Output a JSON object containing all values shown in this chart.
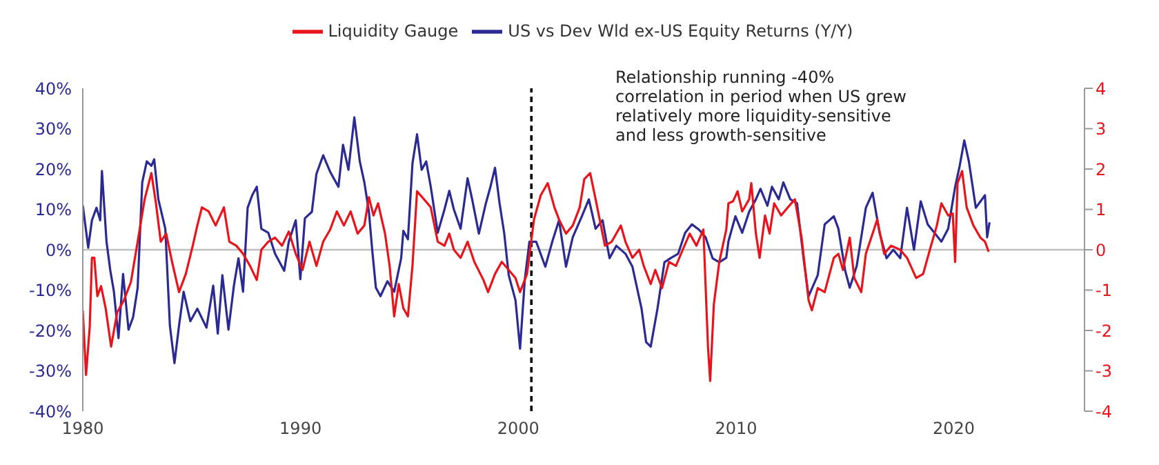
{
  "chart_data": {
    "type": "line",
    "legend": "top",
    "grid": false,
    "marker": "none",
    "line_style": "solid",
    "xlim": [
      1980,
      2026
    ],
    "xticks": [
      1980,
      1990,
      2000,
      2010,
      2020
    ],
    "ylim": [
      -40,
      40
    ],
    "yticks": [
      {
        "value": -40,
        "label": "-40%"
      },
      {
        "value": -30,
        "label": "-30%"
      },
      {
        "value": -20,
        "label": "-20%"
      },
      {
        "value": -10,
        "label": "-10%"
      },
      {
        "value": 0,
        "label": "0%"
      },
      {
        "value": 10,
        "label": "10%"
      },
      {
        "value": 20,
        "label": "20%"
      },
      {
        "value": 30,
        "label": "30%"
      },
      {
        "value": 40,
        "label": "40%"
      }
    ],
    "y2lim": [
      -4,
      4
    ],
    "y2ticks": [
      -4,
      -3,
      -2,
      -1,
      0,
      1,
      2,
      3,
      4
    ],
    "ref_lines": [
      {
        "axis": "y",
        "value": 0,
        "color": "#bfbfbf",
        "line_style": "solid"
      },
      {
        "axis": "x",
        "value": 2000.6,
        "color": "#000000",
        "line_style": "dashed"
      }
    ],
    "annotations": [
      "Relationship running -40%\ncorrelation in period when US grew\nrelatively more liquidity-sensitive\nand less growth-sensitive"
    ],
    "series": [
      {
        "name": "US vs Dev Wld ex-US Equity Returns (Y/Y)",
        "color": "#2b2a92",
        "x": [
          1980.0,
          1980.25,
          1980.42,
          1980.63,
          1980.8,
          1980.88,
          1981.09,
          1981.26,
          1981.43,
          1981.64,
          1981.85,
          1982.1,
          1982.31,
          1982.52,
          1982.73,
          1982.94,
          1983.15,
          1983.28,
          1983.47,
          1983.79,
          1984.0,
          1984.21,
          1984.42,
          1984.63,
          1984.94,
          1985.26,
          1985.68,
          1985.99,
          1986.2,
          1986.41,
          1986.69,
          1986.94,
          1987.15,
          1987.36,
          1987.57,
          1987.78,
          1987.99,
          1988.2,
          1988.52,
          1988.83,
          1989.25,
          1989.46,
          1989.78,
          1989.99,
          1990.2,
          1990.52,
          1990.73,
          1991.04,
          1991.36,
          1991.74,
          1991.95,
          1992.2,
          1992.47,
          1992.72,
          1992.93,
          1993.14,
          1993.29,
          1993.46,
          1993.67,
          1993.99,
          1994.3,
          1994.62,
          1994.72,
          1994.93,
          1995.14,
          1995.35,
          1995.56,
          1995.77,
          1995.98,
          1996.3,
          1996.61,
          1996.83,
          1997.04,
          1997.35,
          1997.67,
          1997.88,
          1998.19,
          1998.51,
          1998.72,
          1998.93,
          1999.14,
          1999.35,
          1999.56,
          1999.87,
          2000.08,
          2000.3,
          2000.51,
          2000.82,
          2001.24,
          2001.56,
          2001.87,
          2002.19,
          2002.5,
          2002.92,
          2003.24,
          2003.55,
          2003.87,
          2004.19,
          2004.5,
          2004.92,
          2005.24,
          2005.66,
          2005.87,
          2006.08,
          2006.39,
          2006.71,
          2007.02,
          2007.34,
          2007.66,
          2007.97,
          2008.29,
          2008.6,
          2008.92,
          2009.23,
          2009.55,
          2009.65,
          2009.97,
          2010.28,
          2010.6,
          2010.91,
          2011.12,
          2011.44,
          2011.65,
          2011.96,
          2012.17,
          2012.49,
          2012.8,
          2013.12,
          2013.33,
          2013.75,
          2014.07,
          2014.49,
          2014.7,
          2015.01,
          2015.22,
          2015.54,
          2015.96,
          2016.27,
          2016.59,
          2016.91,
          2017.22,
          2017.54,
          2017.85,
          2018.17,
          2018.48,
          2018.8,
          2019.11,
          2019.43,
          2019.74,
          2020.06,
          2020.27,
          2020.48,
          2020.69,
          2021.01,
          2021.43,
          2021.53,
          2021.64
        ],
        "values": [
          11,
          0.5,
          7.3,
          10.4,
          7.3,
          19.5,
          2,
          -5,
          -10.4,
          -21.9,
          -6,
          -19.8,
          -16.7,
          -9.4,
          16.7,
          21.9,
          20.8,
          22.4,
          12.5,
          5.2,
          -18.8,
          -28.1,
          -18.8,
          -10.4,
          -17.7,
          -14.6,
          -19.3,
          -8.9,
          -20.8,
          -6.3,
          -19.8,
          -8.9,
          -2.1,
          -10.4,
          10.4,
          13.5,
          15.6,
          5.2,
          4.2,
          -1,
          -5.2,
          2,
          7.3,
          -7.3,
          7.8,
          9.4,
          18.8,
          23.4,
          19.3,
          15.6,
          26,
          19.8,
          32.8,
          21.9,
          16.7,
          9.4,
          0,
          -9.4,
          -11.5,
          -7.8,
          -10.4,
          -2.1,
          4.7,
          2.6,
          21.4,
          28.6,
          19.8,
          21.9,
          15.6,
          4.2,
          10,
          14.6,
          10,
          5.2,
          17.7,
          12.5,
          4,
          11.5,
          15.6,
          20.3,
          11.5,
          4.2,
          -6.3,
          -12.5,
          -24.5,
          -7.3,
          2,
          2,
          -4.2,
          2,
          7.3,
          -4.2,
          3.1,
          8.3,
          12.5,
          5.2,
          7.3,
          -2.1,
          1,
          -1,
          -4.2,
          -14.6,
          -22.9,
          -24,
          -14.6,
          -3.1,
          -2,
          -1,
          4.2,
          6.3,
          5,
          3.1,
          -2.1,
          -3.1,
          -2,
          2.1,
          8.3,
          4.2,
          9.4,
          12.5,
          15.1,
          10.9,
          15.6,
          12.5,
          16.7,
          12.5,
          11.5,
          -3.1,
          -11.5,
          -6.3,
          6.3,
          8.3,
          5.2,
          -5.2,
          -9.4,
          -4,
          10.4,
          14.1,
          4.2,
          -2.1,
          0,
          -2.1,
          10.4,
          0,
          12,
          6.3,
          4.2,
          2,
          5.2,
          15.6,
          20.8,
          27.1,
          21.9,
          10.4,
          13.5,
          3.1,
          6.8
        ]
      },
      {
        "name": "Liquidity Gauge",
        "color": "#e8141c",
        "axis": "y2",
        "x": [
          1980.0,
          1980.15,
          1980.32,
          1980.42,
          1980.53,
          1980.67,
          1980.84,
          1981.05,
          1981.3,
          1981.58,
          1981.89,
          1982.21,
          1982.52,
          1982.84,
          1983.15,
          1983.36,
          1983.58,
          1983.83,
          1984.1,
          1984.42,
          1984.73,
          1985.05,
          1985.26,
          1985.47,
          1985.78,
          1986.1,
          1986.48,
          1986.73,
          1987.05,
          1987.36,
          1987.68,
          1987.99,
          1988.2,
          1988.52,
          1988.83,
          1989.15,
          1989.46,
          1989.78,
          1990.09,
          1990.41,
          1990.73,
          1991.04,
          1991.36,
          1991.67,
          1991.99,
          1992.3,
          1992.62,
          1992.93,
          1993.14,
          1993.35,
          1993.56,
          1993.88,
          1994.09,
          1994.3,
          1994.51,
          1994.72,
          1994.93,
          1995.14,
          1995.35,
          1995.67,
          1995.98,
          1996.3,
          1996.61,
          1996.83,
          1997.04,
          1997.35,
          1997.67,
          1997.98,
          1998.4,
          1998.61,
          1998.93,
          1999.24,
          1999.56,
          1999.87,
          2000.08,
          2000.4,
          2000.72,
          2001.03,
          2001.35,
          2001.66,
          2001.87,
          2002.19,
          2002.5,
          2002.82,
          2003.03,
          2003.3,
          2003.55,
          2003.98,
          2004.29,
          2004.71,
          2004.92,
          2005.24,
          2005.55,
          2005.76,
          2006.08,
          2006.29,
          2006.6,
          2006.92,
          2007.24,
          2007.55,
          2007.87,
          2008.18,
          2008.5,
          2008.71,
          2008.81,
          2008.98,
          2009.23,
          2009.55,
          2009.65,
          2009.86,
          2010.07,
          2010.28,
          2010.6,
          2010.7,
          2010.91,
          2011.08,
          2011.33,
          2011.54,
          2011.75,
          2012.07,
          2012.38,
          2012.7,
          2013.01,
          2013.33,
          2013.48,
          2013.75,
          2014.07,
          2014.49,
          2014.7,
          2014.91,
          2015.22,
          2015.43,
          2015.75,
          2015.96,
          2016.27,
          2016.48,
          2016.8,
          2017.12,
          2017.54,
          2017.85,
          2018.27,
          2018.59,
          2018.9,
          2019.22,
          2019.43,
          2019.74,
          2019.95,
          2020.06,
          2020.17,
          2020.38,
          2020.59,
          2020.9,
          2021.22,
          2021.43,
          2021.6
        ],
        "values": [
          -1.51,
          -3.1,
          -1.9,
          -0.2,
          -0.2,
          -1.15,
          -0.9,
          -1.45,
          -2.4,
          -1.55,
          -1.25,
          -0.8,
          0.2,
          1.25,
          1.9,
          1.15,
          0.2,
          0.4,
          -0.3,
          -1.05,
          -0.6,
          0.1,
          0.6,
          1.05,
          0.95,
          0.6,
          1.05,
          0.2,
          0.1,
          -0.1,
          -0.4,
          -0.75,
          0,
          0.2,
          0.3,
          0.1,
          0.45,
          -0.1,
          -0.5,
          0.2,
          -0.4,
          0.2,
          0.5,
          0.95,
          0.6,
          0.95,
          0.4,
          0.6,
          1.3,
          0.85,
          1.15,
          0.4,
          -0.4,
          -1.65,
          -0.85,
          -1.45,
          -1.65,
          -0.4,
          1.45,
          1.25,
          1.05,
          0.2,
          0.1,
          0.4,
          0,
          -0.2,
          0.2,
          -0.3,
          -0.75,
          -1.05,
          -0.6,
          -0.3,
          -0.5,
          -0.7,
          -1.05,
          -0.6,
          0.75,
          1.35,
          1.65,
          1.05,
          0.75,
          0.4,
          0.6,
          1.05,
          1.75,
          1.9,
          1.25,
          0.1,
          0.2,
          0.6,
          0.2,
          -0.2,
          0,
          -0.4,
          -0.85,
          -0.5,
          -0.95,
          -0.3,
          -0.4,
          0,
          0.4,
          0.1,
          0.5,
          -2.4,
          -3.25,
          -1.35,
          -0.3,
          0.5,
          1.15,
          1.2,
          1.45,
          0.95,
          1.25,
          1.65,
          0.4,
          -0.2,
          0.85,
          0.4,
          1.15,
          0.85,
          1.05,
          1.25,
          0.3,
          -1.25,
          -1.5,
          -0.95,
          -1.05,
          -0.2,
          -0.1,
          -0.5,
          0.3,
          -0.7,
          -1.05,
          -0.1,
          0.4,
          0.75,
          -0.1,
          0.1,
          0,
          -0.2,
          -0.7,
          -0.6,
          0,
          0.6,
          1.15,
          0.85,
          0.9,
          -0.3,
          1.65,
          1.95,
          1.05,
          0.6,
          0.3,
          0.2,
          -0.05
        ]
      }
    ]
  }
}
